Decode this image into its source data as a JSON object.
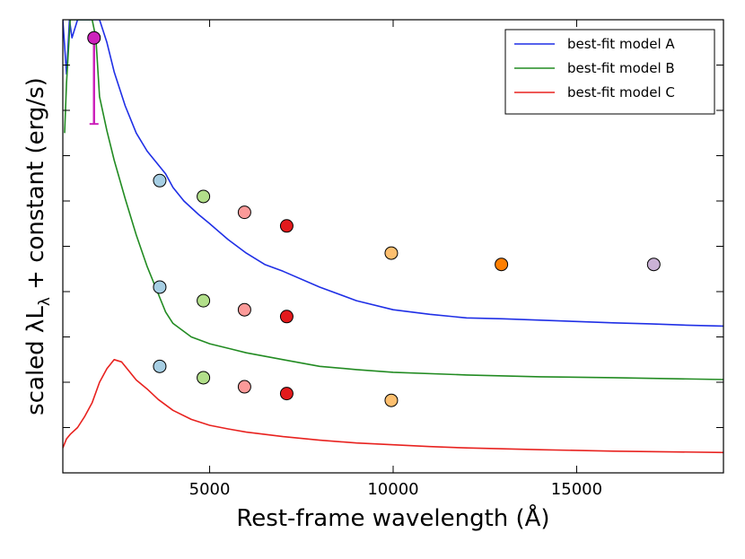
{
  "chart_data": {
    "type": "line",
    "title": "",
    "xlabel": "Rest-frame wavelength (Å)",
    "ylabel_parts": [
      "scaled ",
      "λ",
      "L",
      "λ",
      " + constant (erg/s)"
    ],
    "xlim": [
      1000,
      19000
    ],
    "ylim": [
      0,
      10
    ],
    "xticks": [
      5000,
      10000,
      15000
    ],
    "xtick_labels": [
      "5000",
      "10000",
      "15000"
    ],
    "yticks": [
      1,
      2,
      3,
      4,
      5,
      6,
      7,
      8,
      9
    ],
    "grid": false,
    "legend_position": "top-right",
    "series": [
      {
        "name": "best-fit model A",
        "color": "#1f2fe6",
        "x": [
          1000,
          1100,
          1180,
          1250,
          1400,
          1550,
          1700,
          1850,
          2000,
          2200,
          2400,
          2700,
          3000,
          3300,
          3600,
          3800,
          4000,
          4300,
          4700,
          5000,
          5500,
          6000,
          6500,
          7000,
          8000,
          9000,
          10000,
          11000,
          12000,
          13000,
          14000,
          15000,
          16000,
          17000,
          18000,
          19000
        ],
        "y": [
          10.0,
          8.8,
          10.0,
          9.6,
          10.0,
          10.0,
          10.0,
          10.0,
          10.0,
          9.5,
          8.85,
          8.1,
          7.5,
          7.1,
          6.8,
          6.6,
          6.3,
          6.0,
          5.7,
          5.5,
          5.15,
          4.85,
          4.6,
          4.45,
          4.1,
          3.8,
          3.6,
          3.5,
          3.42,
          3.4,
          3.37,
          3.34,
          3.31,
          3.29,
          3.26,
          3.24
        ]
      },
      {
        "name": "best-fit model B",
        "color": "#228b22",
        "x": [
          1050,
          1100,
          1200,
          1300,
          1400,
          1500,
          1600,
          1700,
          1800,
          1900,
          2000,
          2200,
          2400,
          2700,
          3000,
          3300,
          3600,
          3800,
          4000,
          4500,
          5000,
          5500,
          6000,
          7000,
          8000,
          9000,
          10000,
          12000,
          14000,
          16000,
          19000
        ],
        "y": [
          7.5,
          8.6,
          10.0,
          10.0,
          10.0,
          10.0,
          10.0,
          10.0,
          10.0,
          9.6,
          8.3,
          7.55,
          6.9,
          6.05,
          5.25,
          4.55,
          3.95,
          3.55,
          3.3,
          3.0,
          2.85,
          2.75,
          2.65,
          2.5,
          2.35,
          2.28,
          2.22,
          2.16,
          2.12,
          2.1,
          2.06
        ]
      },
      {
        "name": "best-fit model C",
        "color": "#e8221f",
        "x": [
          1000,
          1100,
          1200,
          1400,
          1600,
          1800,
          2000,
          2200,
          2400,
          2600,
          2800,
          3000,
          3300,
          3600,
          4000,
          4500,
          5000,
          5500,
          6000,
          7000,
          8000,
          9000,
          10000,
          11000,
          12000,
          14000,
          16000,
          19000
        ],
        "y": [
          0.55,
          0.75,
          0.85,
          1.0,
          1.25,
          1.55,
          2.0,
          2.3,
          2.5,
          2.45,
          2.25,
          2.05,
          1.85,
          1.62,
          1.38,
          1.18,
          1.05,
          0.97,
          0.9,
          0.8,
          0.72,
          0.66,
          0.62,
          0.58,
          0.55,
          0.51,
          0.48,
          0.45
        ]
      }
    ],
    "points": [
      {
        "x": 1850,
        "y": 9.6,
        "color": "#cc22bb",
        "yerr_low": 1.9
      },
      {
        "x": 3640,
        "y": 6.45,
        "color": "#a6cee3"
      },
      {
        "x": 4830,
        "y": 6.1,
        "color": "#b2df8a"
      },
      {
        "x": 5950,
        "y": 5.75,
        "color": "#fb9a99"
      },
      {
        "x": 7100,
        "y": 5.45,
        "color": "#e31a1c"
      },
      {
        "x": 9950,
        "y": 4.85,
        "color": "#fdbf6f"
      },
      {
        "x": 12950,
        "y": 4.6,
        "color": "#ff7f00"
      },
      {
        "x": 17100,
        "y": 4.6,
        "color": "#cab2d6"
      },
      {
        "x": 3640,
        "y": 4.1,
        "color": "#a6cee3"
      },
      {
        "x": 4830,
        "y": 3.8,
        "color": "#b2df8a"
      },
      {
        "x": 5950,
        "y": 3.6,
        "color": "#fb9a99"
      },
      {
        "x": 7100,
        "y": 3.45,
        "color": "#e31a1c"
      },
      {
        "x": 3640,
        "y": 2.35,
        "color": "#a6cee3"
      },
      {
        "x": 4830,
        "y": 2.1,
        "color": "#b2df8a"
      },
      {
        "x": 5950,
        "y": 1.9,
        "color": "#fb9a99"
      },
      {
        "x": 7100,
        "y": 1.75,
        "color": "#e31a1c"
      },
      {
        "x": 9950,
        "y": 1.6,
        "color": "#fdbf6f"
      }
    ]
  }
}
